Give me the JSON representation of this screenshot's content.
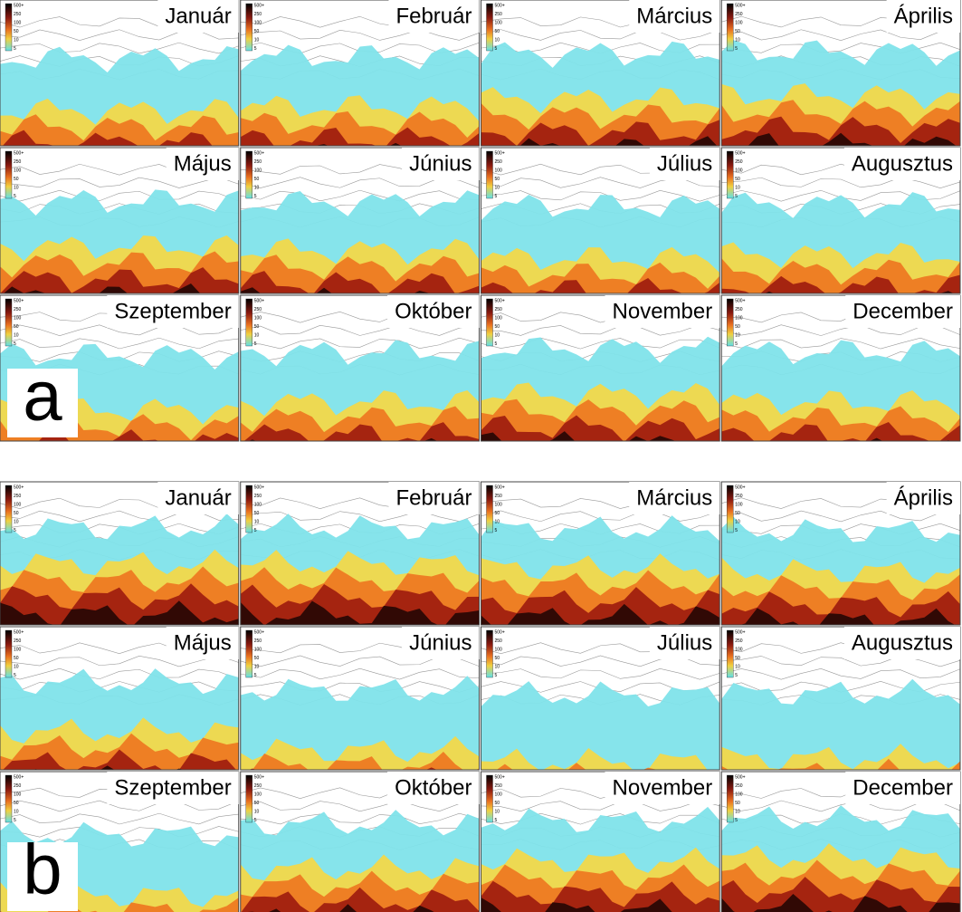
{
  "panels": [
    {
      "letter": "a",
      "months": [
        "Január",
        "Február",
        "Március",
        "Április",
        "Május",
        "Június",
        "Július",
        "Augusztus",
        "Szeptember",
        "Október",
        "November",
        "December"
      ]
    },
    {
      "letter": "b",
      "months": [
        "Január",
        "Február",
        "Március",
        "Április",
        "Május",
        "Június",
        "Július",
        "Augusztus",
        "Szeptember",
        "Október",
        "November",
        "December"
      ]
    }
  ],
  "colorbar": {
    "ticks": [
      "500+",
      "250",
      "100",
      "50",
      "10",
      "5"
    ]
  }
}
